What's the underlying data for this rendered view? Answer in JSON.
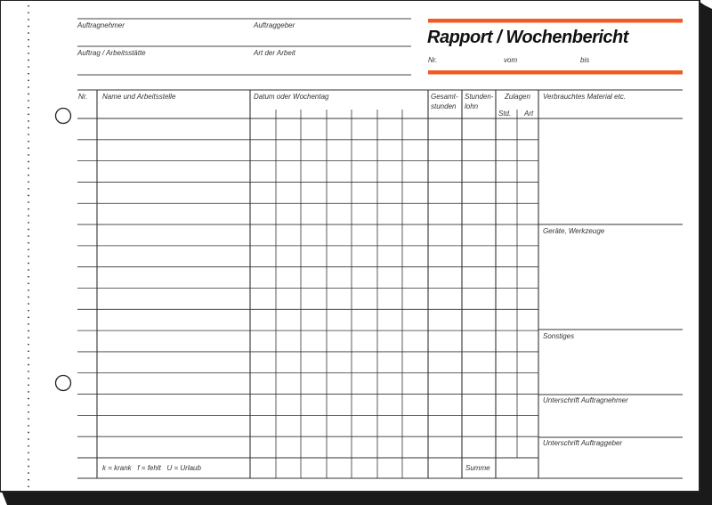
{
  "header": {
    "title": "Rapport / Wochenbericht",
    "accent_color": "#f15a22",
    "fields": {
      "contractor": "Auftragnehmer",
      "client": "Auftraggeber",
      "order_site": "Auftrag / Arbeitsstätte",
      "work_type": "Art der Arbeit",
      "nr": "Nr.",
      "from": "vom",
      "to": "bis"
    }
  },
  "table": {
    "columns": {
      "nr": "Nr.",
      "name": "Name und Arbeitsstelle",
      "date": "Datum oder Wochentag",
      "total_hours_1": "Gesamt-",
      "total_hours_2": "stunden",
      "wage_1": "Stunden-",
      "wage_2": "lohn",
      "allowances": "Zulagen",
      "allowance_hours": "Std.",
      "allowance_type": "Art",
      "material": "Verbrauchtes Material etc."
    },
    "side_sections": {
      "tools": "Geräte, Werkzeuge",
      "other": "Sonstiges",
      "sign_contractor": "Unterschrift Auftragnehmer",
      "sign_client": "Unterschrift Auftraggeber"
    },
    "legend": "k = krank   f = fehlt   U = Urlaub",
    "sum": "Summe"
  }
}
